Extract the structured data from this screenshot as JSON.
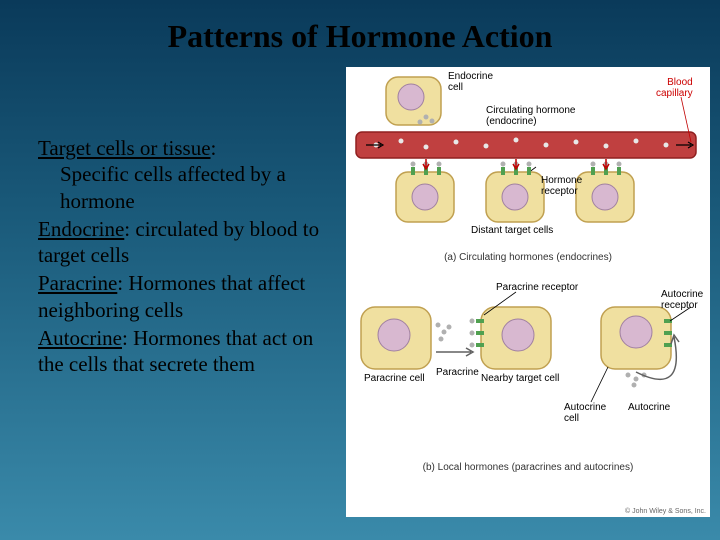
{
  "title": "Patterns of Hormone Action",
  "definitions": {
    "target": {
      "term": "Target cells or tissue",
      "text": "Specific cells affected by a hormone"
    },
    "endocrine": {
      "term": "Endocrine",
      "text": "circulated by blood to target cells"
    },
    "paracrine": {
      "term": "Paracrine",
      "text": "Hormones that affect neighboring cells"
    },
    "autocrine": {
      "term": "Autocrine",
      "text": "Hormones that act on the cells that secrete them"
    }
  },
  "diagram": {
    "labels": {
      "endocrine_cell": "Endocrine\ncell",
      "circulating_hormone": "Circulating hormone\n(endocrine)",
      "blood_capillary": "Blood\ncapillary",
      "hormone_receptor": "Hormone\nreceptor",
      "distant_target": "Distant target cells",
      "paracrine_receptor": "Paracrine receptor",
      "paracrine_cell": "Paracrine cell",
      "paracrine": "Paracrine",
      "nearby_target": "Nearby target cell",
      "autocrine_cell": "Autocrine\ncell",
      "autocrine": "Autocrine",
      "autocrine_receptor": "Autocrine\nreceptor"
    },
    "captions": {
      "a": "(a) Circulating hormones (endocrines)",
      "b": "(b) Local hormones (paracrines and autocrines)"
    },
    "credit": "© John Wiley & Sons, Inc.",
    "colors": {
      "cell_fill": "#f0e0a0",
      "cell_stroke": "#c0a050",
      "nucleus_fill": "#d8b8d0",
      "nucleus_stroke": "#a080a0",
      "vessel_fill": "#c04040",
      "vessel_dark": "#902020",
      "hormone": "#b0b0b0",
      "receptor": "#50a050",
      "arrow": "#c00000",
      "arrow_gray": "#606060"
    }
  }
}
